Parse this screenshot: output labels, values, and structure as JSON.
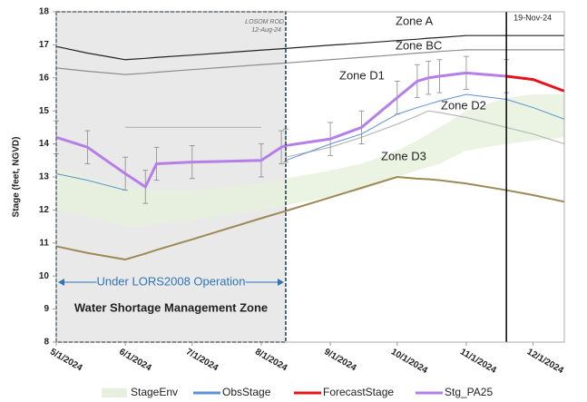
{
  "chart_data": {
    "type": "line",
    "y_label": "Stage (feet, NGVD)",
    "x": [
      "2024-05-01",
      "2024-05-15",
      "2024-06-01",
      "2024-06-10",
      "2024-06-15",
      "2024-07-01",
      "2024-08-01",
      "2024-08-10",
      "2024-08-12",
      "2024-09-01",
      "2024-09-15",
      "2024-10-01",
      "2024-10-10",
      "2024-10-15",
      "2024-10-20",
      "2024-11-01",
      "2024-11-19",
      "2024-12-01",
      "2024-12-15"
    ],
    "xlim": [
      "2024-05-01",
      "2024-12-15"
    ],
    "xticks": [
      {
        "value": "2024-05-01",
        "label": "5/1/2024"
      },
      {
        "value": "2024-06-01",
        "label": "6/1/2024"
      },
      {
        "value": "2024-07-01",
        "label": "7/1/2024"
      },
      {
        "value": "2024-08-01",
        "label": "8/1/2024"
      },
      {
        "value": "2024-09-01",
        "label": "9/1/2024"
      },
      {
        "value": "2024-10-01",
        "label": "10/1/2024"
      },
      {
        "value": "2024-11-01",
        "label": "11/1/2024"
      },
      {
        "value": "2024-12-01",
        "label": "12/1/2024"
      }
    ],
    "ylim": [
      8,
      18
    ],
    "yticks": [
      8,
      9,
      10,
      11,
      12,
      13,
      14,
      15,
      16,
      17,
      18
    ],
    "grid": false,
    "legend": "bottom",
    "band": {
      "name": "StageEnv",
      "color": "#e6f0dc",
      "values": [
        13.3,
        13.0,
        12.7,
        12.6,
        12.6,
        12.6,
        12.8,
        12.9,
        12.95,
        13.2,
        13.4,
        13.8,
        14.1,
        14.3,
        14.5,
        15.0,
        15.4,
        15.5,
        15.5
      ],
      "lower": [
        12.0,
        11.8,
        11.5,
        11.5,
        11.6,
        11.7,
        12.0,
        12.1,
        12.15,
        12.4,
        12.6,
        13.0,
        13.2,
        13.3,
        13.4,
        13.8,
        14.0,
        14.1,
        14.2
      ]
    },
    "series": [
      {
        "name": "ObsStage",
        "color": "#5b8fd6",
        "values": [
          13.1,
          12.9,
          12.6,
          null,
          null,
          null,
          null,
          null,
          13.5,
          14.0,
          14.3,
          14.9,
          15.1,
          15.2,
          15.3,
          15.5,
          15.35,
          15.1,
          14.75
        ]
      },
      {
        "name": "ForecastStage",
        "color": "#e8141c",
        "values": [
          null,
          null,
          null,
          null,
          null,
          null,
          null,
          null,
          null,
          null,
          null,
          null,
          null,
          null,
          null,
          null,
          16.05,
          15.95,
          15.6
        ]
      },
      {
        "name": "Stg_PA25",
        "color": "#b57ee8",
        "values": [
          14.2,
          13.9,
          13.1,
          12.7,
          13.4,
          13.45,
          13.5,
          13.9,
          13.95,
          14.15,
          14.5,
          15.4,
          15.9,
          16.0,
          16.05,
          16.15,
          16.05,
          null,
          null
        ],
        "errors": [
          0.5,
          0.5,
          0.5,
          0.5,
          0.5,
          0.5,
          0.5,
          0.5,
          0.5,
          0.5,
          0.5,
          0.5,
          0.5,
          0.5,
          0.5,
          0.5,
          0.5,
          null,
          null
        ]
      }
    ],
    "zones": [
      {
        "name": "Zone A",
        "color": "#222222",
        "values": [
          16.95,
          16.75,
          16.55,
          16.59,
          16.62,
          16.69,
          16.84,
          16.88,
          16.89,
          16.99,
          17.05,
          17.13,
          17.17,
          17.2,
          17.22,
          17.28,
          17.28,
          17.28,
          17.28
        ]
      },
      {
        "name": "Zone BC",
        "color": "#8c8c8c",
        "values": [
          16.3,
          16.2,
          16.1,
          16.14,
          16.17,
          16.25,
          16.4,
          16.44,
          16.45,
          16.55,
          16.62,
          16.7,
          16.75,
          16.77,
          16.8,
          16.85,
          16.85,
          16.85,
          16.85
        ]
      },
      {
        "name": "Zone D2",
        "color": "#b8b8b8",
        "values": [
          null,
          null,
          14.5,
          14.5,
          14.5,
          14.5,
          14.5,
          null,
          13.6,
          13.9,
          14.2,
          14.6,
          14.85,
          15.0,
          14.95,
          14.8,
          14.5,
          14.3,
          14.0
        ]
      },
      {
        "name": "Zone D3",
        "color": "#9b8a55",
        "values": [
          10.9,
          10.7,
          10.5,
          10.68,
          10.79,
          11.11,
          11.75,
          11.93,
          11.97,
          12.38,
          12.67,
          13.0,
          12.95,
          12.93,
          12.9,
          12.8,
          12.6,
          12.45,
          12.25
        ]
      }
    ],
    "zone_label_D1": "Zone D1",
    "shaded_region": {
      "x": [
        "2024-05-01",
        "2024-08-12"
      ],
      "label": "Under LORS2008 Operation",
      "sublabel": "Water Shortage Management Zone"
    },
    "marker_losom": {
      "x": "2024-08-12",
      "label": "LOSOM ROD",
      "date_label": "12-Aug-24"
    },
    "marker_today": {
      "x": "2024-11-19",
      "label": "19-Nov-24"
    }
  }
}
